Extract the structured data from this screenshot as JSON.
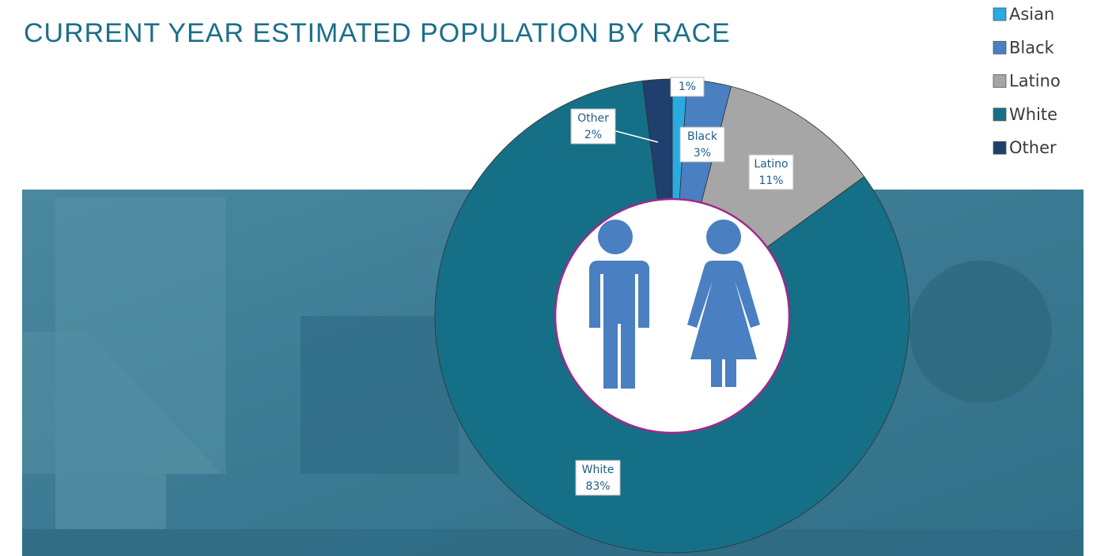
{
  "chart_data": {
    "type": "pie",
    "title": "CURRENT YEAR ESTIMATED POPULATION BY RACE",
    "categories": [
      "Asian",
      "Black",
      "Latino",
      "White",
      "Other"
    ],
    "values": [
      1,
      3,
      11,
      83,
      2
    ],
    "value_labels": [
      "1%",
      "3%",
      "11%",
      "83%",
      "2%"
    ],
    "colors": [
      "#29abe2",
      "#4a7fc1",
      "#a6a6a6",
      "#156f87",
      "#1f3f6e"
    ],
    "legend": "top-right"
  }
}
